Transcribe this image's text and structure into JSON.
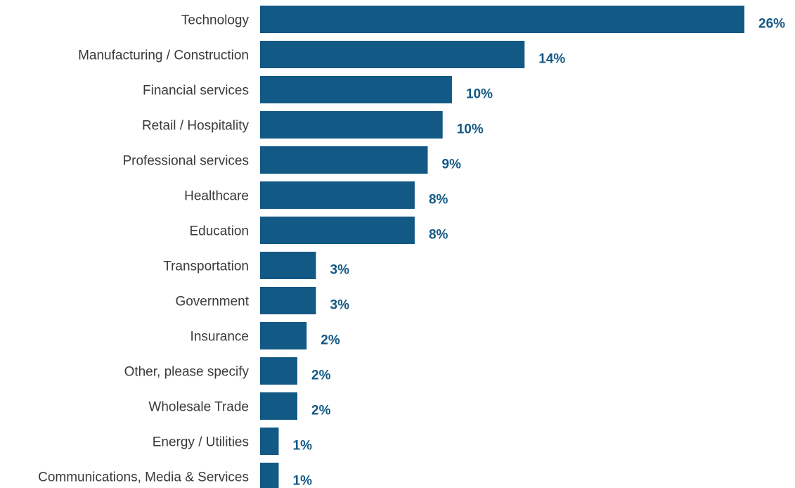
{
  "chart_data": {
    "type": "bar",
    "orientation": "horizontal",
    "categories": [
      "Technology",
      "Manufacturing / Construction",
      "Financial services",
      "Retail / Hospitality",
      "Professional services",
      "Healthcare",
      "Education",
      "Transportation",
      "Government",
      "Insurance",
      "Other, please specify",
      "Wholesale Trade",
      "Energy / Utilities",
      "Communications, Media & Services"
    ],
    "values": [
      26,
      14,
      10,
      10,
      9,
      8,
      8,
      3,
      3,
      2,
      2,
      2,
      1,
      1
    ],
    "bar_lengths": [
      26,
      14.2,
      10.3,
      9.8,
      9,
      8.3,
      8.3,
      3,
      3,
      2.5,
      2,
      2,
      1,
      1
    ],
    "value_labels": [
      "26%",
      "14%",
      "10%",
      "10%",
      "9%",
      "8%",
      "8%",
      "3%",
      "3%",
      "2%",
      "2%",
      "2%",
      "1%",
      "1%"
    ],
    "title": "",
    "xlabel": "",
    "ylabel": "",
    "grid": false,
    "legend": "none",
    "colors": {
      "bar": "#135985",
      "value_label": "#135985",
      "category_label": "#3a3a3a"
    }
  }
}
